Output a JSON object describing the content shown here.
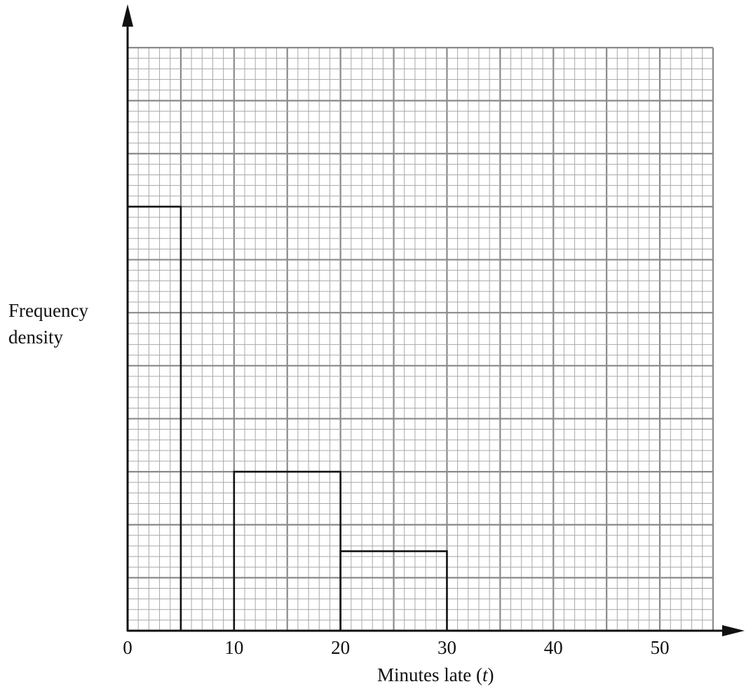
{
  "chart_data": {
    "type": "bar",
    "subtype": "histogram",
    "xlabel": "Minutes late",
    "xlabel_var": "t",
    "ylabel_lines": [
      "Frequency",
      "density"
    ],
    "x_ticks": [
      0,
      10,
      20,
      30,
      40,
      50
    ],
    "xlim": [
      0,
      55
    ],
    "ylim": [
      0,
      11
    ],
    "grid": true,
    "bars": [
      {
        "x_start": 0,
        "x_end": 5,
        "density": 8
      },
      {
        "x_start": 10,
        "x_end": 20,
        "density": 3
      },
      {
        "x_start": 20,
        "x_end": 30,
        "density": 1.5
      }
    ]
  }
}
